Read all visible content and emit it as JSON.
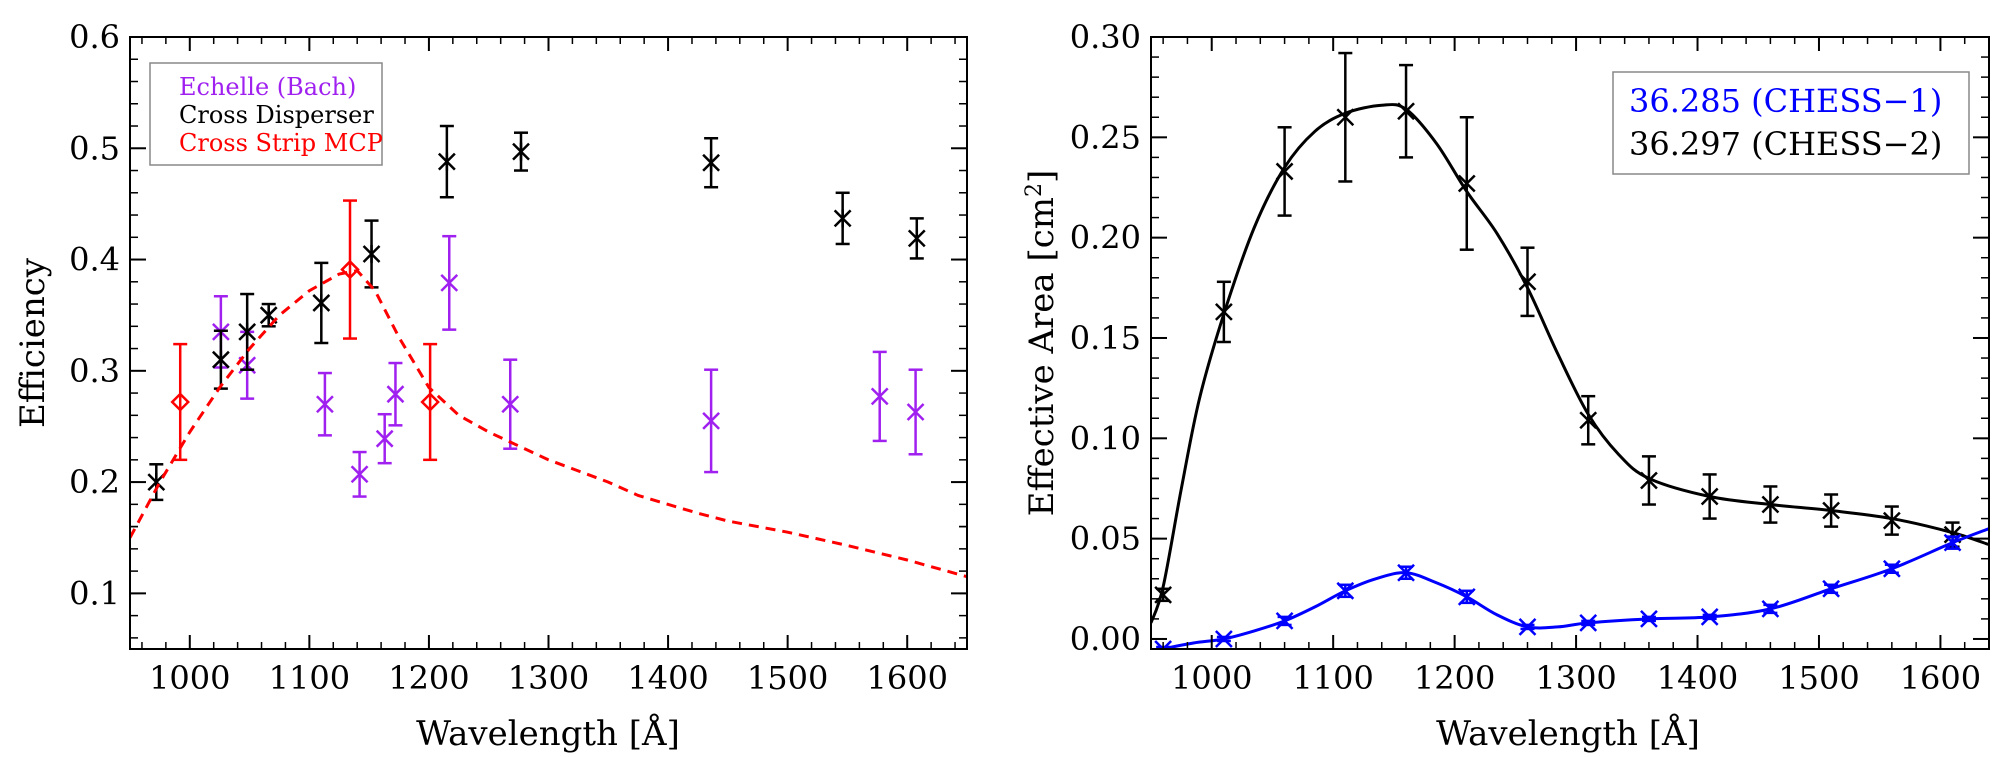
{
  "chart_data": [
    {
      "type": "scatter",
      "panel": "left",
      "xlabel": "Wavelength [Å]",
      "ylabel": "Efficiency",
      "xlim": [
        950,
        1650
      ],
      "ylim": [
        0.05,
        0.6
      ],
      "xticks": [
        1000,
        1100,
        1200,
        1300,
        1400,
        1500,
        1600
      ],
      "xtick_labels": [
        "1000",
        "1100",
        "1200",
        "1300",
        "1400",
        "1500",
        "1600"
      ],
      "yticks": [
        0.1,
        0.2,
        0.3,
        0.4,
        0.5,
        0.6
      ],
      "ytick_labels": [
        "0.1",
        "0.2",
        "0.3",
        "0.4",
        "0.5",
        "0.6"
      ],
      "legend": {
        "position": "top-left",
        "entries": [
          {
            "label": "Echelle (Bach)",
            "color": "#a020f0"
          },
          {
            "label": "Cross Disperser",
            "color": "#000000"
          },
          {
            "label": "Cross Strip MCP",
            "color": "#ff0000"
          }
        ]
      },
      "series": [
        {
          "name": "Echelle (Bach)",
          "color": "#a020f0",
          "marker": "x",
          "x": [
            1026,
            1048,
            1113,
            1142,
            1163,
            1172,
            1217,
            1268,
            1436,
            1577,
            1607
          ],
          "y": [
            0.335,
            0.305,
            0.27,
            0.207,
            0.239,
            0.279,
            0.379,
            0.27,
            0.255,
            0.277,
            0.263
          ],
          "err": [
            0.032,
            0.03,
            0.028,
            0.02,
            0.022,
            0.028,
            0.042,
            0.04,
            0.046,
            0.04,
            0.038
          ]
        },
        {
          "name": "Cross Disperser",
          "color": "#000000",
          "marker": "asterisk",
          "x": [
            972,
            1026,
            1048,
            1066,
            1110,
            1152,
            1215,
            1277,
            1436,
            1546,
            1608
          ],
          "y": [
            0.2,
            0.31,
            0.335,
            0.35,
            0.361,
            0.405,
            0.488,
            0.497,
            0.487,
            0.437,
            0.419
          ],
          "err": [
            0.016,
            0.026,
            0.034,
            0.01,
            0.036,
            0.03,
            0.032,
            0.017,
            0.022,
            0.023,
            0.018
          ]
        },
        {
          "name": "Cross Strip MCP",
          "color": "#ff0000",
          "marker": "diamond",
          "x": [
            992,
            1134,
            1201
          ],
          "y": [
            0.272,
            0.391,
            0.272
          ],
          "err": [
            0.052,
            0.062,
            0.052
          ]
        },
        {
          "name": "Cross Strip MCP model",
          "color": "#ff0000",
          "style": "dashed",
          "x": [
            950,
            975,
            1000,
            1025,
            1050,
            1075,
            1100,
            1125,
            1140,
            1155,
            1175,
            1200,
            1225,
            1250,
            1300,
            1350,
            1375,
            1425,
            1450,
            1500,
            1550,
            1600,
            1650
          ],
          "y": [
            0.15,
            0.2,
            0.245,
            0.285,
            0.32,
            0.35,
            0.372,
            0.387,
            0.39,
            0.372,
            0.33,
            0.285,
            0.26,
            0.245,
            0.22,
            0.2,
            0.188,
            0.172,
            0.165,
            0.155,
            0.143,
            0.13,
            0.115
          ]
        }
      ]
    },
    {
      "type": "line",
      "panel": "right",
      "xlabel": "Wavelength [Å]",
      "ylabel": "Effective Area [cm²]",
      "ylabel_main": "Effective Area [cm",
      "ylabel_sup": "2",
      "ylabel_end": "]",
      "xlim": [
        950,
        1640
      ],
      "ylim": [
        -0.005,
        0.3
      ],
      "xticks": [
        1000,
        1100,
        1200,
        1300,
        1400,
        1500,
        1600
      ],
      "xtick_labels": [
        "1000",
        "1100",
        "1200",
        "1300",
        "1400",
        "1500",
        "1600"
      ],
      "yticks": [
        0.0,
        0.05,
        0.1,
        0.15,
        0.2,
        0.25,
        0.3
      ],
      "ytick_labels": [
        "0.00",
        "0.05",
        "0.10",
        "0.15",
        "0.20",
        "0.25",
        "0.30"
      ],
      "legend": {
        "position": "top-right",
        "entries": [
          {
            "label": "36.285 (CHESS−1)",
            "color": "#0000ff"
          },
          {
            "label": "36.297 (CHESS−2)",
            "color": "#000000"
          }
        ]
      },
      "series": [
        {
          "name": "36.297 (CHESS−2)",
          "color": "#000000",
          "marker": "x",
          "x": [
            960,
            1010,
            1060,
            1110,
            1160,
            1210,
            1260,
            1310,
            1360,
            1410,
            1460,
            1510,
            1560,
            1610
          ],
          "y": [
            0.022,
            0.163,
            0.233,
            0.26,
            0.263,
            0.227,
            0.178,
            0.109,
            0.079,
            0.071,
            0.067,
            0.064,
            0.059,
            0.052
          ],
          "err": [
            0.003,
            0.015,
            0.022,
            0.032,
            0.023,
            0.033,
            0.017,
            0.012,
            0.012,
            0.011,
            0.009,
            0.008,
            0.007,
            0.006
          ],
          "curve_x": [
            950,
            960,
            975,
            990,
            1010,
            1035,
            1060,
            1085,
            1110,
            1140,
            1160,
            1185,
            1210,
            1235,
            1260,
            1285,
            1310,
            1335,
            1360,
            1410,
            1460,
            1510,
            1560,
            1610,
            1640
          ],
          "curve_y": [
            0.008,
            0.026,
            0.075,
            0.12,
            0.162,
            0.205,
            0.235,
            0.253,
            0.262,
            0.266,
            0.264,
            0.247,
            0.223,
            0.202,
            0.175,
            0.142,
            0.112,
            0.092,
            0.08,
            0.071,
            0.067,
            0.064,
            0.06,
            0.053,
            0.047
          ]
        },
        {
          "name": "36.285 (CHESS−1)",
          "color": "#0000ff",
          "marker": "x",
          "x": [
            960,
            1010,
            1060,
            1110,
            1160,
            1210,
            1260,
            1310,
            1360,
            1410,
            1460,
            1510,
            1560,
            1610
          ],
          "y": [
            -0.005,
            0.0,
            0.009,
            0.024,
            0.033,
            0.021,
            0.006,
            0.008,
            0.01,
            0.011,
            0.015,
            0.025,
            0.035,
            0.048
          ],
          "err": [
            0.001,
            0.001,
            0.002,
            0.003,
            0.003,
            0.003,
            0.001,
            0.001,
            0.001,
            0.001,
            0.002,
            0.002,
            0.002,
            0.003
          ],
          "curve_x": [
            950,
            960,
            985,
            1010,
            1035,
            1060,
            1085,
            1110,
            1135,
            1160,
            1185,
            1210,
            1235,
            1260,
            1285,
            1310,
            1360,
            1410,
            1460,
            1510,
            1560,
            1610,
            1640
          ],
          "curve_y": [
            -0.007,
            -0.005,
            -0.002,
            0.0,
            0.004,
            0.009,
            0.016,
            0.024,
            0.03,
            0.033,
            0.028,
            0.021,
            0.012,
            0.006,
            0.006,
            0.008,
            0.01,
            0.011,
            0.015,
            0.025,
            0.035,
            0.048,
            0.055
          ]
        }
      ]
    }
  ]
}
